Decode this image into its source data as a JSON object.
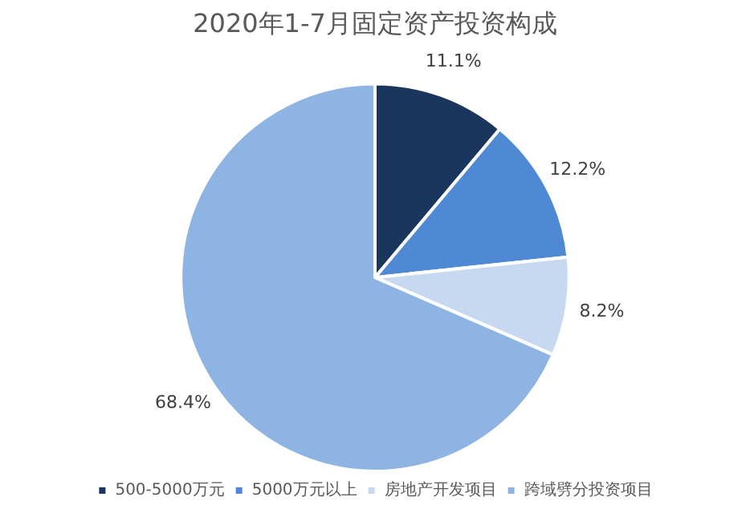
{
  "chart_data": {
    "type": "pie",
    "title": "2020年1-7月固定资产投资构成",
    "categories": [
      "500-5000万元",
      "5000万元以上",
      "房地产开发项目",
      "跨域劈分投资项目"
    ],
    "values": [
      11.1,
      12.2,
      8.2,
      68.4
    ],
    "colors": [
      "#1b365d",
      "#4f88d3",
      "#c6d9f1",
      "#8eb4e3"
    ],
    "value_labels": [
      "11.1%",
      "12.2%",
      "8.2%",
      "68.4%"
    ],
    "legend": "bottom"
  }
}
